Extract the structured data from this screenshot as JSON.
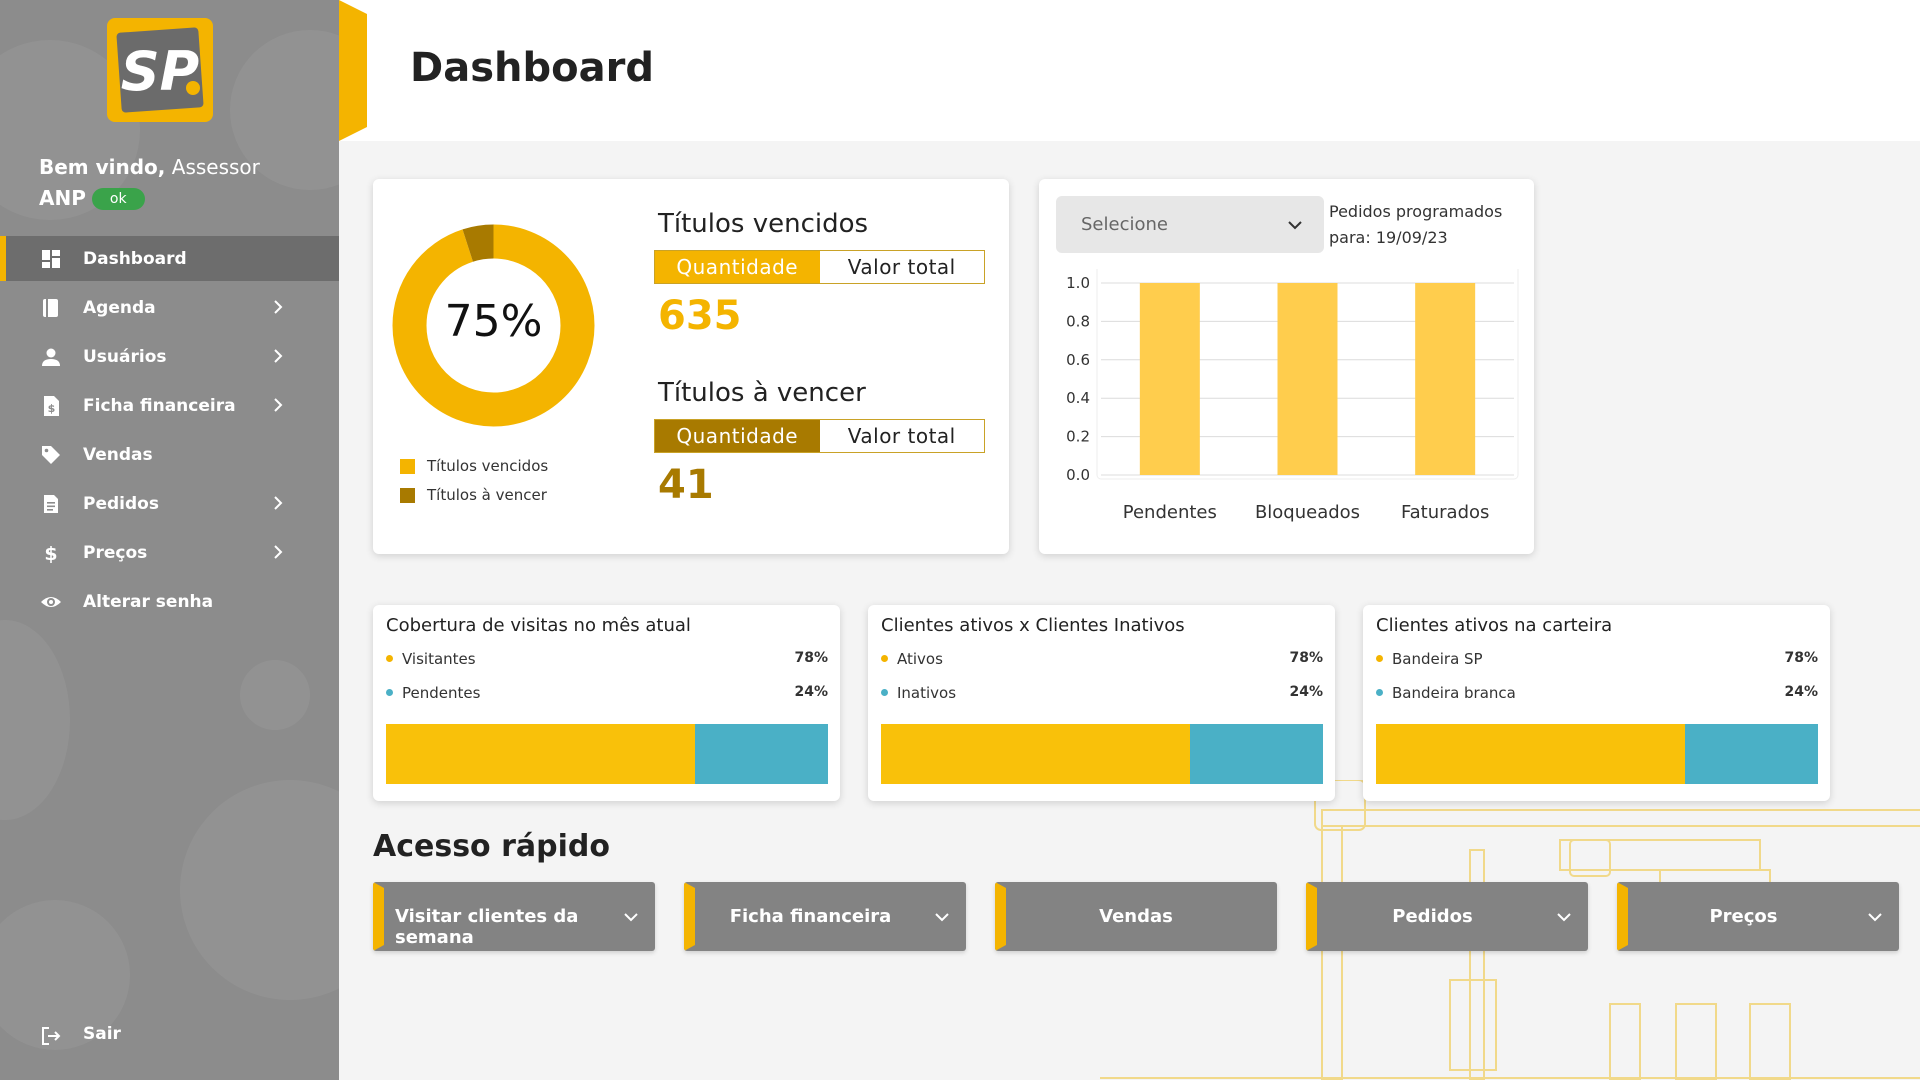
{
  "colors": {
    "brand_yellow": "#f4b400",
    "dark_gold": "#a87a00",
    "teal": "#4ab0c6",
    "sidebar_gray": "#8c8c8c",
    "sidebar_active": "#6d6d6d",
    "button_gray": "#838383",
    "ok_green": "#3aa34a"
  },
  "sidebar": {
    "logo_text": "SP",
    "welcome_prefix": "Bem vindo,",
    "welcome_role": "Assessor",
    "welcome_user": "ANP",
    "status_badge": "ok",
    "items": [
      {
        "label": "Dashboard",
        "icon": "dashboard-icon",
        "active": true,
        "has_chevron": false
      },
      {
        "label": "Agenda",
        "icon": "book-icon",
        "active": false,
        "has_chevron": true
      },
      {
        "label": "Usuários",
        "icon": "user-icon",
        "active": false,
        "has_chevron": true
      },
      {
        "label": "Ficha financeira",
        "icon": "finance-document-icon",
        "active": false,
        "has_chevron": true
      },
      {
        "label": "Vendas",
        "icon": "tag-icon",
        "active": false,
        "has_chevron": false
      },
      {
        "label": "Pedidos",
        "icon": "document-icon",
        "active": false,
        "has_chevron": true
      },
      {
        "label": "Preços",
        "icon": "dollar-icon",
        "active": false,
        "has_chevron": true
      },
      {
        "label": "Alterar senha",
        "icon": "eye-icon",
        "active": false,
        "has_chevron": false
      }
    ],
    "logout_label": "Sair"
  },
  "header": {
    "title": "Dashboard"
  },
  "titulos": {
    "donut_percent_label": "75%",
    "donut_vencidos_fraction": 0.95,
    "donut_fraction": 0.75,
    "legend": [
      {
        "label": "Títulos vencidos",
        "color": "#f4b400"
      },
      {
        "label": "Títulos à vencer",
        "color": "#a87a00"
      }
    ],
    "vencidos": {
      "heading": "Títulos vencidos",
      "toggle_quantidade": "Quantidade",
      "toggle_valor": "Valor total",
      "value": "635"
    },
    "a_vencer": {
      "heading": "Títulos à vencer",
      "toggle_quantidade": "Quantidade",
      "toggle_valor": "Valor total",
      "value": "41"
    }
  },
  "pedidos": {
    "select_value": "Selecione",
    "label": "Pedidos programados para: 19/09/23"
  },
  "chart_data": {
    "type": "bar",
    "categories": [
      "Pendentes",
      "Bloqueados",
      "Faturados"
    ],
    "values": [
      1.0,
      1.0,
      1.0
    ],
    "ylim": [
      0,
      1.0
    ],
    "yticks": [
      "0.0",
      "0.2",
      "0.4",
      "0.6",
      "0.8",
      "1.0"
    ],
    "xlabel": "",
    "ylabel": "",
    "title": "",
    "grid": true,
    "bar_color": "#ffcd4d"
  },
  "mini_cards": [
    {
      "title": "Cobertura de visitas no mês atual",
      "rows": [
        {
          "label": "Visitantes",
          "pct": "78%",
          "color": "#f4b400"
        },
        {
          "label": "Pendentes",
          "pct": "24%",
          "color": "#4ab0c6"
        }
      ],
      "bar_split": 0.7
    },
    {
      "title": "Clientes ativos x Clientes Inativos",
      "rows": [
        {
          "label": "Ativos",
          "pct": "78%",
          "color": "#f4b400"
        },
        {
          "label": "Inativos",
          "pct": "24%",
          "color": "#4ab0c6"
        }
      ],
      "bar_split": 0.7
    },
    {
      "title": "Clientes ativos na carteira",
      "rows": [
        {
          "label": "Bandeira SP",
          "pct": "78%",
          "color": "#f4b400"
        },
        {
          "label": "Bandeira branca",
          "pct": "24%",
          "color": "#4ab0c6"
        }
      ],
      "bar_split": 0.7
    }
  ],
  "quick_access": {
    "title": "Acesso rápido",
    "buttons": [
      {
        "label": "Visitar clientes da semana",
        "has_chevron": true
      },
      {
        "label": "Ficha financeira",
        "has_chevron": true
      },
      {
        "label": "Vendas",
        "has_chevron": false
      },
      {
        "label": "Pedidos",
        "has_chevron": true
      },
      {
        "label": "Preços",
        "has_chevron": true
      }
    ]
  }
}
